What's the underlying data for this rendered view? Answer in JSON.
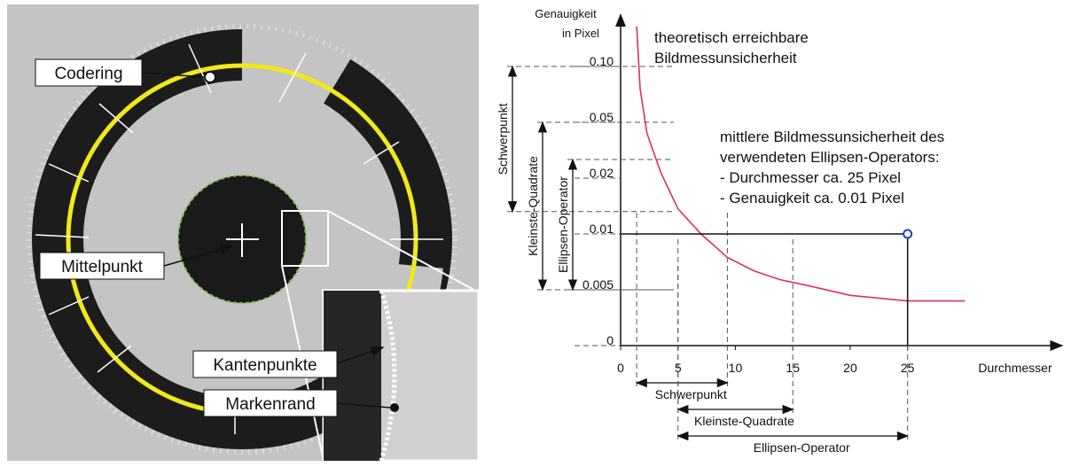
{
  "photo": {
    "labels": [
      "Codering",
      "Mittelpunkt",
      "Kantenpunkte",
      "Markenrand"
    ]
  },
  "chart_data": {
    "type": "line",
    "ylabel": [
      "Genauigkeit",
      "in Pixel"
    ],
    "xlabel": "Durchmesser",
    "xlim": [
      0,
      38
    ],
    "xticks": [
      0,
      5,
      10,
      15,
      20,
      25
    ],
    "ylim": [
      0,
      0.14
    ],
    "yscale": "tick-spaced",
    "yticks": [
      0,
      {
        "value": 0.005,
        "label": "0.005"
      },
      {
        "value": 0.01,
        "label": "0.01"
      },
      {
        "value": 0.02,
        "label": "0.02"
      },
      {
        "value": 0.05,
        "label": "0.05"
      },
      {
        "value": 0.1,
        "label": "0.10"
      }
    ],
    "curve": {
      "color": "#e0305a",
      "x": [
        1.4,
        1.7,
        2.3,
        3.5,
        5,
        7,
        9.3,
        11.6,
        13.9,
        16.2,
        20,
        25,
        30
      ],
      "y": [
        0.136,
        0.08,
        0.044,
        0.023,
        0.0145,
        0.01,
        0.0079,
        0.0067,
        0.0059,
        0.0054,
        0.0045,
        0.004,
        0.004
      ]
    },
    "point": {
      "x": 25,
      "y": 0.01,
      "color": "#1f3fbf"
    },
    "annotations": [
      [
        "theoretisch erreichbare",
        "Bildmessunsicherheit"
      ],
      [
        "mittlere Bildmessunsicherheit des",
        "verwendeten Ellipsen-Operators:",
        "- Durchmesser ca. 25 Pixel",
        "- Genauigkeit ca. 0.01 Pixel"
      ]
    ],
    "ranges": [
      {
        "name": "Schwerpunkt",
        "x": [
          1.4,
          9.3
        ],
        "y": [
          0.1,
          0.014
        ]
      },
      {
        "name": "Kleinste-Quadrate",
        "x": [
          5,
          15
        ],
        "y": [
          0.05,
          0.005
        ]
      },
      {
        "name": "Ellipsen-Operator",
        "x": [
          5,
          25
        ],
        "y": [
          0.03,
          0.005
        ]
      }
    ]
  }
}
